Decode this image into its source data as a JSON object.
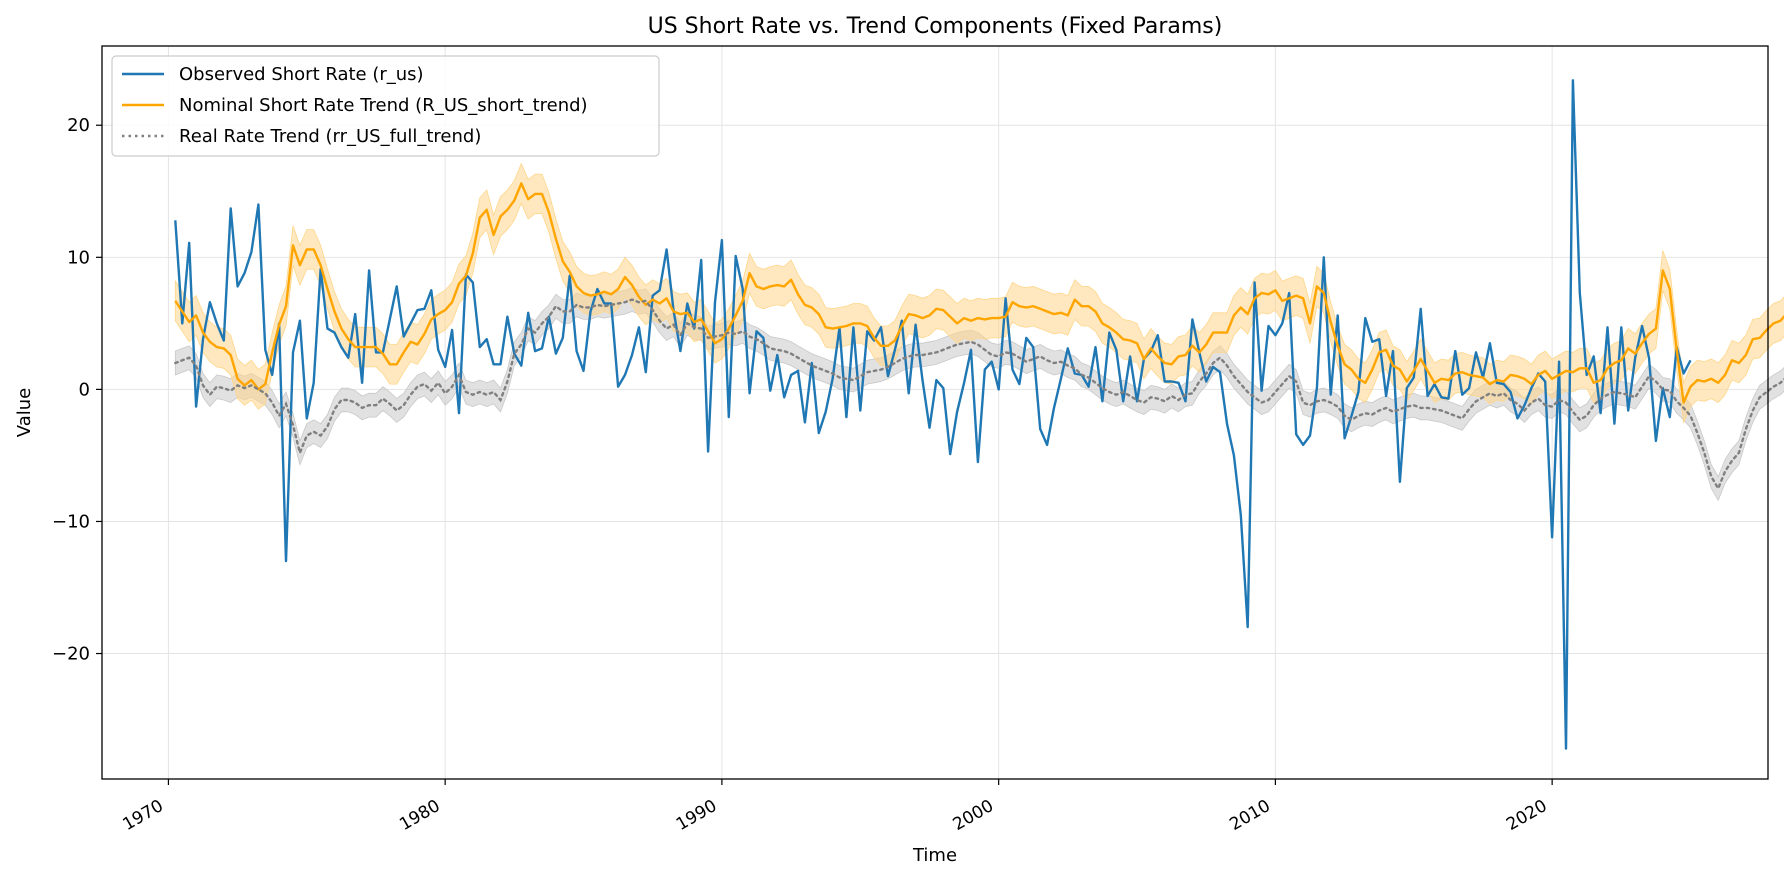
{
  "chart_data": {
    "type": "line",
    "title": "US Short Rate vs. Trend Components (Fixed Params)",
    "xlabel": "Time",
    "ylabel": "Value",
    "xlim": [
      1967.6,
      2027.8
    ],
    "ylim": [
      -29.5,
      26.0
    ],
    "xticks": [
      1970,
      1980,
      1990,
      2000,
      2010,
      2020
    ],
    "xtick_labels": [
      "1970",
      "1980",
      "1990",
      "2000",
      "2010",
      "2020"
    ],
    "yticks": [
      -20,
      -10,
      0,
      10,
      20
    ],
    "ytick_labels": [
      "−20",
      "−10",
      "0",
      "10",
      "20"
    ],
    "grid": true,
    "legend_position": "top-left",
    "colors": {
      "observed": "#1f77b4",
      "nominal": "#ffa500",
      "nominal_band": "#ffd68a",
      "real": "#808080",
      "real_band": "#c8c8c8"
    },
    "series": [
      {
        "name": "Observed Short Rate (r_us)",
        "style": "solid",
        "x_start": 1970.25,
        "x_step": 0.25,
        "values": [
          12.8,
          5.0,
          11.1,
          -1.3,
          3.8,
          6.6,
          5.0,
          3.7,
          13.7,
          7.8,
          8.8,
          10.4,
          14.0,
          3.0,
          1.1,
          5.0,
          -13.0,
          2.8,
          5.2,
          -2.2,
          0.5,
          9.1,
          4.6,
          4.3,
          3.2,
          2.4,
          5.7,
          0.5,
          9.0,
          2.8,
          2.8,
          5.3,
          7.8,
          4.0,
          5.0,
          6.0,
          6.1,
          7.5,
          3.0,
          1.7,
          4.5,
          -1.8,
          8.7,
          8.1,
          3.2,
          3.8,
          1.9,
          1.9,
          5.5,
          2.7,
          1.8,
          5.8,
          2.9,
          3.1,
          5.5,
          2.7,
          3.9,
          8.6,
          2.9,
          1.4,
          5.9,
          7.6,
          6.5,
          6.5,
          0.2,
          1.1,
          2.6,
          4.7,
          1.3,
          7.1,
          7.5,
          10.6,
          6.0,
          2.9,
          6.5,
          4.6,
          9.8,
          -4.7,
          6.6,
          11.3,
          -2.1,
          10.1,
          7.6,
          -0.3,
          4.4,
          3.9,
          -0.1,
          2.6,
          -0.6,
          1.1,
          1.4,
          -2.5,
          2.0,
          -3.3,
          -1.7,
          0.8,
          4.7,
          -2.1,
          4.7,
          -1.6,
          4.4,
          3.7,
          4.7,
          1.0,
          3.0,
          5.2,
          -0.3,
          4.9,
          0.7,
          -2.9,
          0.7,
          0.1,
          -4.9,
          -1.7,
          0.5,
          3.0,
          -5.5,
          1.5,
          2.1,
          0.0,
          6.9,
          1.5,
          0.4,
          3.9,
          3.2,
          -3.0,
          -4.2,
          -1.4,
          0.8,
          3.1,
          1.2,
          1.1,
          0.2,
          3.2,
          -0.9,
          4.3,
          3.0,
          -0.9,
          2.5,
          -0.9,
          2.3,
          2.9,
          4.1,
          0.6,
          0.6,
          0.5,
          -0.9,
          5.3,
          2.8,
          0.6,
          1.7,
          1.3,
          -2.6,
          -5.0,
          -9.5,
          -18.0,
          8.1,
          -0.1,
          4.8,
          4.1,
          5.0,
          7.3,
          -3.4,
          -4.2,
          -3.5,
          0.1,
          10.0,
          -0.4,
          5.6,
          -3.7,
          -2.0,
          -0.2,
          5.4,
          3.6,
          3.8,
          -0.5,
          2.9,
          -7.0,
          0.1,
          0.9,
          6.1,
          -0.5,
          0.4,
          -0.6,
          -0.7,
          2.9,
          -0.4,
          0.1,
          2.8,
          0.9,
          3.5,
          0.5,
          0.4,
          -0.2,
          -2.2,
          -1.2,
          0.1,
          1.2,
          0.6,
          -11.2,
          2.1,
          -27.2,
          23.4,
          7.3,
          1.1,
          2.5,
          -1.8,
          4.7,
          -2.6,
          4.7,
          -1.6,
          2.4,
          4.8,
          2.4,
          -3.9,
          0.1,
          -2.1,
          3.2,
          1.2,
          2.2
        ]
      },
      {
        "name": "Nominal Short Rate Trend (R_US_short_trend)",
        "style": "solid",
        "band_halfwidth": 1.5,
        "x_start": 1970.25,
        "x_step": 0.25,
        "values": [
          6.7,
          5.9,
          5.1,
          5.6,
          4.3,
          3.6,
          3.2,
          3.1,
          2.6,
          0.8,
          0.3,
          0.7,
          0.0,
          0.4,
          2.8,
          4.9,
          6.3,
          10.9,
          9.4,
          10.6,
          10.6,
          9.4,
          7.6,
          5.9,
          4.6,
          3.8,
          3.2,
          3.2,
          3.2,
          3.2,
          2.7,
          1.9,
          1.9,
          2.8,
          3.6,
          3.4,
          4.2,
          5.3,
          5.7,
          6.0,
          6.6,
          8.0,
          8.6,
          10.3,
          13.0,
          13.6,
          11.7,
          13.1,
          13.6,
          14.3,
          15.6,
          14.4,
          14.8,
          14.8,
          13.4,
          11.4,
          9.7,
          8.9,
          7.8,
          7.3,
          7.1,
          7.2,
          7.4,
          7.2,
          7.6,
          8.5,
          7.9,
          7.0,
          6.4,
          6.8,
          6.5,
          6.9,
          5.9,
          5.7,
          5.8,
          5.1,
          5.3,
          4.4,
          3.5,
          3.8,
          4.6,
          5.6,
          6.7,
          8.8,
          7.8,
          7.6,
          7.8,
          7.9,
          7.8,
          8.3,
          7.2,
          6.4,
          6.2,
          5.7,
          4.7,
          4.6,
          4.7,
          4.8,
          5.0,
          5.0,
          4.8,
          3.9,
          3.3,
          3.3,
          3.7,
          4.8,
          5.7,
          5.6,
          5.4,
          5.6,
          6.1,
          6.0,
          5.5,
          5.0,
          5.4,
          5.2,
          5.4,
          5.3,
          5.4,
          5.4,
          5.5,
          6.6,
          6.3,
          6.2,
          6.3,
          6.1,
          5.9,
          5.7,
          5.8,
          5.6,
          6.8,
          6.3,
          6.3,
          5.9,
          5.0,
          4.7,
          4.3,
          3.8,
          3.7,
          3.5,
          2.3,
          3.1,
          2.5,
          2.0,
          1.9,
          2.5,
          2.6,
          3.3,
          2.8,
          3.4,
          4.3,
          4.3,
          4.3,
          5.6,
          6.2,
          5.7,
          6.9,
          7.3,
          7.2,
          7.5,
          6.7,
          6.9,
          7.1,
          6.9,
          5.0,
          7.8,
          7.3,
          5.1,
          3.3,
          1.9,
          1.5,
          0.8,
          0.5,
          1.5,
          2.8,
          3.0,
          1.8,
          1.5,
          0.6,
          1.4,
          2.3,
          1.4,
          0.5,
          0.8,
          0.7,
          1.2,
          1.3,
          1.1,
          1.0,
          0.9,
          0.4,
          0.7,
          0.6,
          1.1,
          1.0,
          0.8,
          0.4,
          1.1,
          1.4,
          0.8,
          1.1,
          1.4,
          1.3,
          1.6,
          1.6,
          0.5,
          0.7,
          1.6,
          2.0,
          2.2,
          3.1,
          2.7,
          3.5,
          4.2,
          4.6,
          9.0,
          7.6,
          3.0,
          -1.0,
          0.2,
          0.7,
          0.6,
          0.8,
          0.5,
          1.1,
          2.2,
          2.0,
          2.6,
          3.8,
          3.9,
          4.5,
          5.0,
          5.2,
          5.8,
          6.0,
          6.5,
          6.3,
          6.2,
          6.1,
          5.8
        ]
      },
      {
        "name": "Real Rate Trend (rr_US_full_trend)",
        "style": "dotted",
        "band_halfwidth": 0.9,
        "x_start": 1970.25,
        "x_step": 0.25,
        "values": [
          2.0,
          2.2,
          2.4,
          1.8,
          0.3,
          -0.4,
          0.2,
          0.1,
          -0.1,
          0.3,
          0.1,
          0.3,
          0.0,
          -0.3,
          -1.0,
          -2.0,
          -1.1,
          -2.7,
          -4.8,
          -3.5,
          -3.2,
          -3.5,
          -2.8,
          -1.5,
          -0.8,
          -0.8,
          -1.0,
          -1.4,
          -1.2,
          -1.2,
          -0.7,
          -1.1,
          -1.6,
          -1.2,
          -0.4,
          0.2,
          0.4,
          -0.1,
          0.5,
          -0.3,
          0.2,
          1.1,
          -0.2,
          -0.4,
          -0.2,
          -0.4,
          -0.2,
          -0.8,
          0.6,
          2.7,
          3.4,
          4.6,
          4.3,
          5.0,
          5.5,
          6.3,
          5.9,
          5.9,
          6.4,
          6.2,
          6.2,
          6.4,
          6.3,
          6.4,
          6.5,
          6.6,
          6.8,
          6.6,
          6.7,
          6.0,
          5.2,
          4.6,
          4.9,
          4.1,
          5.0,
          4.7,
          4.6,
          3.9,
          4.0,
          4.1,
          4.3,
          4.2,
          4.4,
          4.0,
          3.8,
          3.5,
          3.1,
          3.0,
          2.9,
          2.7,
          2.4,
          2.1,
          1.8,
          1.6,
          1.4,
          1.2,
          0.9,
          0.8,
          0.7,
          1.0,
          1.3,
          1.4,
          1.5,
          1.7,
          2.0,
          2.3,
          2.5,
          2.6,
          2.6,
          2.7,
          2.8,
          3.0,
          3.2,
          3.4,
          3.5,
          3.6,
          3.4,
          3.0,
          2.6,
          2.5,
          2.8,
          2.7,
          2.4,
          2.1,
          2.3,
          2.5,
          2.2,
          2.0,
          2.1,
          1.8,
          1.6,
          1.1,
          0.9,
          0.5,
          0.1,
          -0.2,
          -0.4,
          -0.2,
          -0.5,
          -0.8,
          -1.0,
          -0.6,
          -0.7,
          -0.9,
          -0.5,
          -0.8,
          -0.4,
          -0.3,
          0.6,
          1.2,
          2.0,
          2.4,
          1.8,
          1.0,
          0.4,
          -0.2,
          -0.6,
          -1.0,
          -0.8,
          -0.2,
          0.4,
          1.0,
          0.6,
          -1.0,
          -1.2,
          -0.9,
          -0.8,
          -1.0,
          -1.3,
          -2.0,
          -2.3,
          -2.0,
          -1.8,
          -1.9,
          -1.6,
          -1.4,
          -1.7,
          -1.5,
          -1.3,
          -1.2,
          -1.4,
          -1.4,
          -1.5,
          -1.6,
          -1.8,
          -2.0,
          -2.2,
          -1.5,
          -0.9,
          -0.6,
          -0.3,
          -0.5,
          -0.3,
          -0.8,
          -1.1,
          -1.6,
          -1.0,
          -0.7,
          -1.2,
          -1.3,
          -0.8,
          -1.0,
          -1.7,
          -2.3,
          -2.0,
          -1.2,
          -0.7,
          -0.4,
          -0.2,
          -0.3,
          -0.4,
          -0.6,
          0.2,
          1.0,
          0.6,
          0.0,
          -0.1,
          -0.9,
          -1.4,
          -2.0,
          -3.3,
          -4.8,
          -6.6,
          -7.5,
          -6.2,
          -5.4,
          -4.8,
          -3.0,
          -1.6,
          -0.6,
          -0.2,
          0.2,
          0.5,
          1.0,
          0.8
        ]
      }
    ]
  }
}
